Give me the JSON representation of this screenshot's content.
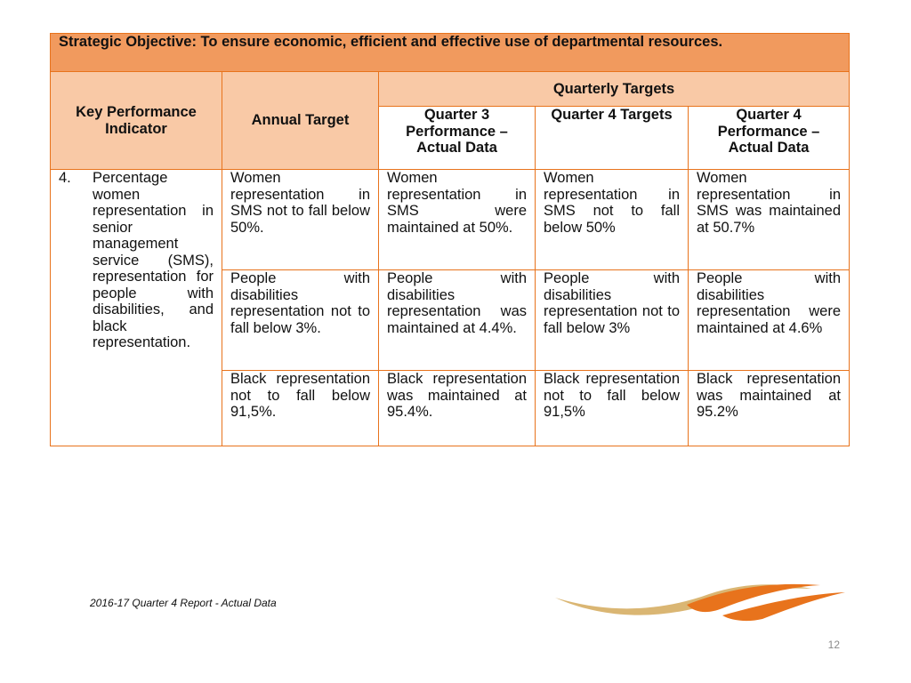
{
  "objective": "Strategic Objective: To ensure economic, efficient and effective use of departmental resources.",
  "headers": {
    "kpi": "Key Performance Indicator",
    "annual": "Annual Target",
    "quarterly": "Quarterly Targets",
    "q3": "Quarter 3 Performance – Actual Data",
    "q4_targets": "Quarter  4 Targets",
    "q4_actual": "Quarter 4 Performance – Actual Data"
  },
  "kpi": {
    "number": "4.",
    "text": "Percentage women representation in senior management service (SMS), representation for people with disabilities, and black representation."
  },
  "rows": [
    {
      "annual": "Women representation in SMS not to fall below 50%.",
      "q3": "Women representation in SMS were maintained at 50%.",
      "q4_target": "Women representation in SMS not to fall below 50%",
      "q4_actual": "Women representation in SMS was maintained at 50.7%"
    },
    {
      "annual": "People with disabilities representation not to fall below 3%.",
      "q3": "People with disabilities representation was maintained at 4.4%.",
      "q4_target": "People with disabilities representation not to fall below 3%",
      "q4_actual": "People with disabilities representation were maintained at 4.6%"
    },
    {
      "annual": "Black representation not to fall below 91,5%.",
      "q3": "Black representation was maintained at 95.4%.",
      "q4_target": "Black representation not to fall below 91,5%",
      "q4_actual": "Black representation was maintained at 95.2%"
    }
  ],
  "footer": "2016-17 Quarter 4 Report - Actual Data",
  "page_number": "12",
  "colors": {
    "border": "#e8731c",
    "objective_bg": "#f19a5e",
    "header_bg": "#f9c9a6",
    "logo_gold": "#d4a95a",
    "logo_orange": "#e8731c"
  }
}
